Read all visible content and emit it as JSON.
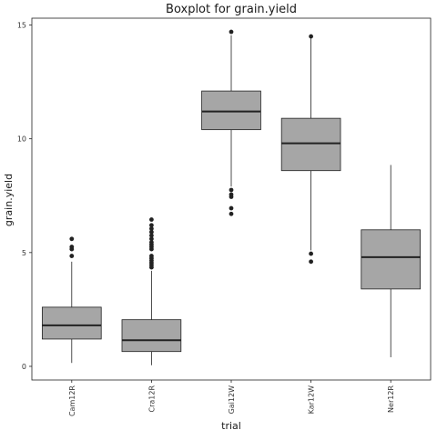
{
  "chart_data": {
    "type": "boxplot",
    "title": "Boxplot for grain.yield",
    "xlabel": "trial",
    "ylabel": "grain.yield",
    "ylim": [
      -0.6,
      15.3
    ],
    "yticks": [
      0,
      5,
      10,
      15
    ],
    "grid": false,
    "fill_color": "#a6a6a6",
    "line_color": "#222222",
    "categories": [
      "Cam12R",
      "Cra12R",
      "Gai12W",
      "Kar12W",
      "Ner12R"
    ],
    "boxes": [
      {
        "name": "Cam12R",
        "whisker_low": 0.15,
        "q1": 1.2,
        "median": 1.8,
        "q3": 2.6,
        "whisker_high": 4.6,
        "outliers": [
          4.85,
          5.15,
          5.25,
          5.6
        ]
      },
      {
        "name": "Cra12R",
        "whisker_low": 0.05,
        "q1": 0.65,
        "median": 1.15,
        "q3": 2.05,
        "whisker_high": 4.2,
        "outliers": [
          4.35,
          4.45,
          4.55,
          4.65,
          4.75,
          4.85,
          5.15,
          5.25,
          5.35,
          5.45,
          5.6,
          5.75,
          5.9,
          6.05,
          6.2,
          6.45
        ]
      },
      {
        "name": "Gai12W",
        "whisker_low": 7.9,
        "q1": 10.4,
        "median": 11.2,
        "q3": 12.1,
        "whisker_high": 14.55,
        "outliers": [
          6.7,
          6.95,
          7.45,
          7.55,
          7.75,
          14.7
        ]
      },
      {
        "name": "Kar12W",
        "whisker_low": 5.1,
        "q1": 8.6,
        "median": 9.8,
        "q3": 10.9,
        "whisker_high": 14.45,
        "outliers": [
          4.6,
          4.95,
          14.5
        ]
      },
      {
        "name": "Ner12R",
        "whisker_low": 0.4,
        "q1": 3.4,
        "median": 4.8,
        "q3": 6.0,
        "whisker_high": 8.85,
        "outliers": []
      }
    ]
  }
}
